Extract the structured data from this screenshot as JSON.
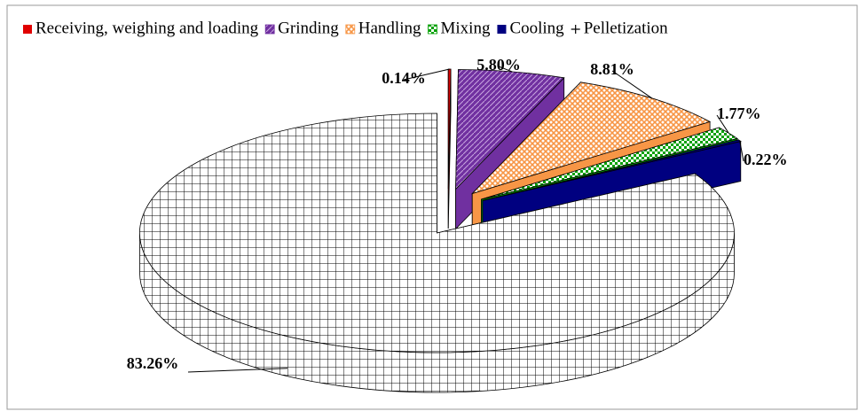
{
  "chart_data": {
    "type": "pie",
    "categories": [
      "Receiving, weighing and loading",
      "Grinding",
      "Handling",
      "Mixing",
      "Cooling",
      "Pelletization"
    ],
    "values": [
      0.14,
      5.8,
      8.81,
      1.77,
      0.22,
      83.26
    ],
    "value_labels": [
      "0.14%",
      "5.80%",
      "8.81%",
      "1.77%",
      "0.22%",
      "83.26%"
    ],
    "colors": [
      "#e00000",
      "#7030a0",
      "#f79646",
      "#00a000",
      "#000080",
      "#ffffff"
    ],
    "fills": [
      "solid",
      "diagonal",
      "crosshatch",
      "checker",
      "solid",
      "grid"
    ],
    "legend": "top"
  }
}
